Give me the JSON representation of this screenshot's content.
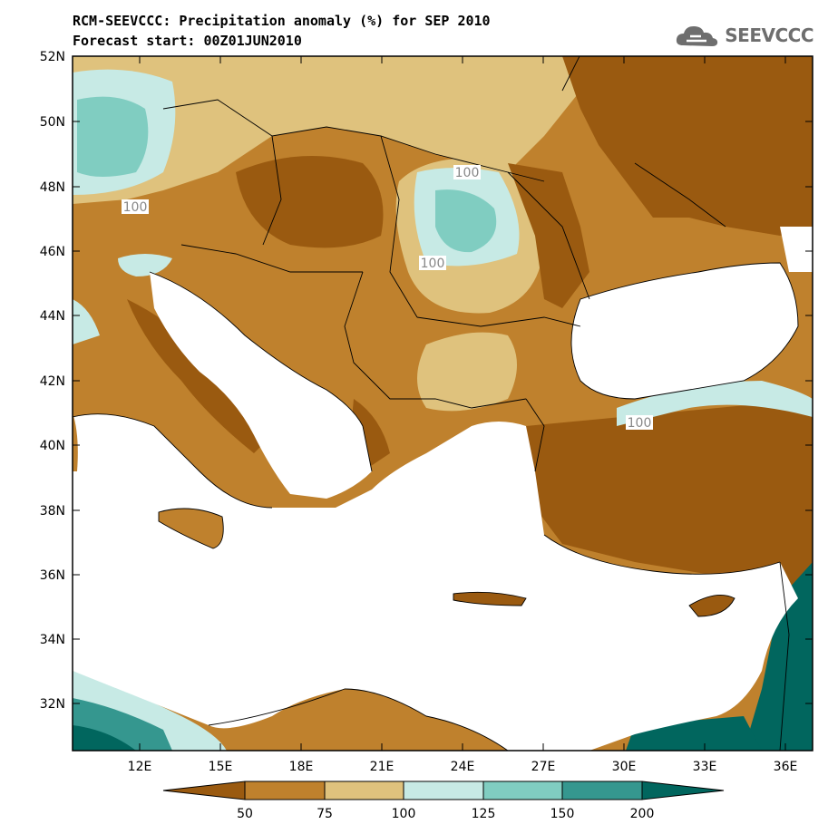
{
  "header": {
    "title": "RCM-SEEVCCC: Precipitation anomaly (%) for SEP 2010",
    "subtitle": "Forecast start: 00Z01JUN2010",
    "logo_text": "SEEVCCC"
  },
  "map": {
    "lat_labels": [
      "52N",
      "50N",
      "48N",
      "46N",
      "44N",
      "42N",
      "40N",
      "38N",
      "36N",
      "34N",
      "32N"
    ],
    "lon_labels": [
      "12E",
      "15E",
      "18E",
      "21E",
      "24E",
      "27E",
      "30E",
      "33E",
      "36E"
    ],
    "contour_labels": [
      "100",
      "100",
      "100",
      "100"
    ],
    "colors": {
      "lt50": "#9a5a10",
      "50_75": "#bf812d",
      "75_100": "#dfc27d",
      "100_125": "#c7eae5",
      "125_150": "#80cdc1",
      "150_200": "#35978f",
      "gt200": "#01665e",
      "sea": "#ffffff"
    }
  },
  "colorbar": {
    "labels": [
      "50",
      "75",
      "100",
      "125",
      "150",
      "200"
    ]
  }
}
